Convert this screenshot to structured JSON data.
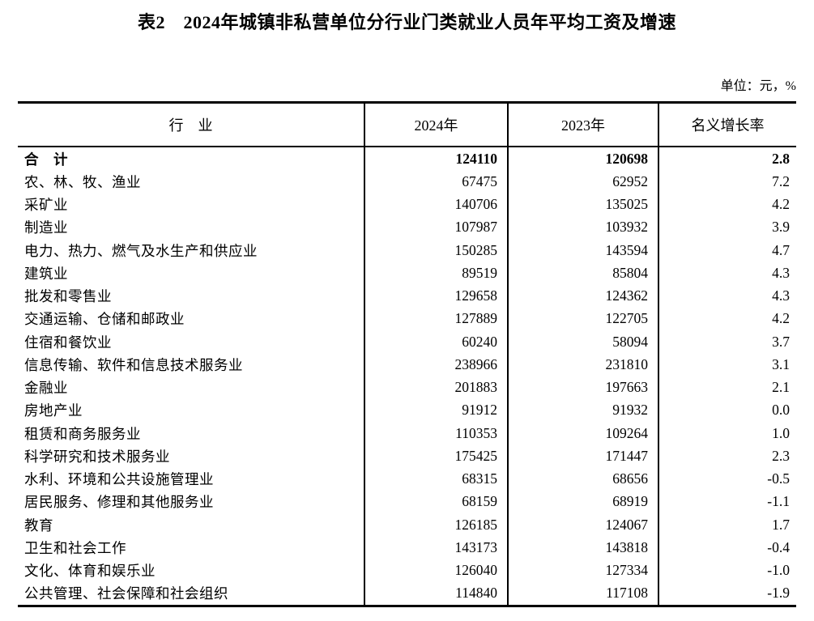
{
  "page": {
    "title": "表2　2024年城镇非私营单位分行业门类就业人员年平均工资及增速",
    "unit_label": "单位：元，%"
  },
  "colors": {
    "text": "#000000",
    "border": "#000000",
    "background": "#ffffff"
  },
  "table": {
    "columns": [
      "行　业",
      "2024年",
      "2023年",
      "名义增长率"
    ],
    "rows": [
      {
        "industry": "合　计",
        "y2024": "124110",
        "y2023": "120698",
        "growth": "2.8",
        "bold": true
      },
      {
        "industry": "农、林、牧、渔业",
        "y2024": "67475",
        "y2023": "62952",
        "growth": "7.2",
        "bold": false
      },
      {
        "industry": "采矿业",
        "y2024": "140706",
        "y2023": "135025",
        "growth": "4.2",
        "bold": false
      },
      {
        "industry": "制造业",
        "y2024": "107987",
        "y2023": "103932",
        "growth": "3.9",
        "bold": false
      },
      {
        "industry": "电力、热力、燃气及水生产和供应业",
        "y2024": "150285",
        "y2023": "143594",
        "growth": "4.7",
        "bold": false
      },
      {
        "industry": "建筑业",
        "y2024": "89519",
        "y2023": "85804",
        "growth": "4.3",
        "bold": false
      },
      {
        "industry": "批发和零售业",
        "y2024": "129658",
        "y2023": "124362",
        "growth": "4.3",
        "bold": false
      },
      {
        "industry": "交通运输、仓储和邮政业",
        "y2024": "127889",
        "y2023": "122705",
        "growth": "4.2",
        "bold": false
      },
      {
        "industry": "住宿和餐饮业",
        "y2024": "60240",
        "y2023": "58094",
        "growth": "3.7",
        "bold": false
      },
      {
        "industry": "信息传输、软件和信息技术服务业",
        "y2024": "238966",
        "y2023": "231810",
        "growth": "3.1",
        "bold": false
      },
      {
        "industry": "金融业",
        "y2024": "201883",
        "y2023": "197663",
        "growth": "2.1",
        "bold": false
      },
      {
        "industry": "房地产业",
        "y2024": "91912",
        "y2023": "91932",
        "growth": "0.0",
        "bold": false
      },
      {
        "industry": "租赁和商务服务业",
        "y2024": "110353",
        "y2023": "109264",
        "growth": "1.0",
        "bold": false
      },
      {
        "industry": "科学研究和技术服务业",
        "y2024": "175425",
        "y2023": "171447",
        "growth": "2.3",
        "bold": false
      },
      {
        "industry": "水利、环境和公共设施管理业",
        "y2024": "68315",
        "y2023": "68656",
        "growth": "-0.5",
        "bold": false
      },
      {
        "industry": "居民服务、修理和其他服务业",
        "y2024": "68159",
        "y2023": "68919",
        "growth": "-1.1",
        "bold": false
      },
      {
        "industry": "教育",
        "y2024": "126185",
        "y2023": "124067",
        "growth": "1.7",
        "bold": false
      },
      {
        "industry": "卫生和社会工作",
        "y2024": "143173",
        "y2023": "143818",
        "growth": "-0.4",
        "bold": false
      },
      {
        "industry": "文化、体育和娱乐业",
        "y2024": "126040",
        "y2023": "127334",
        "growth": "-1.0",
        "bold": false
      },
      {
        "industry": "公共管理、社会保障和社会组织",
        "y2024": "114840",
        "y2023": "117108",
        "growth": "-1.9",
        "bold": false
      }
    ]
  }
}
